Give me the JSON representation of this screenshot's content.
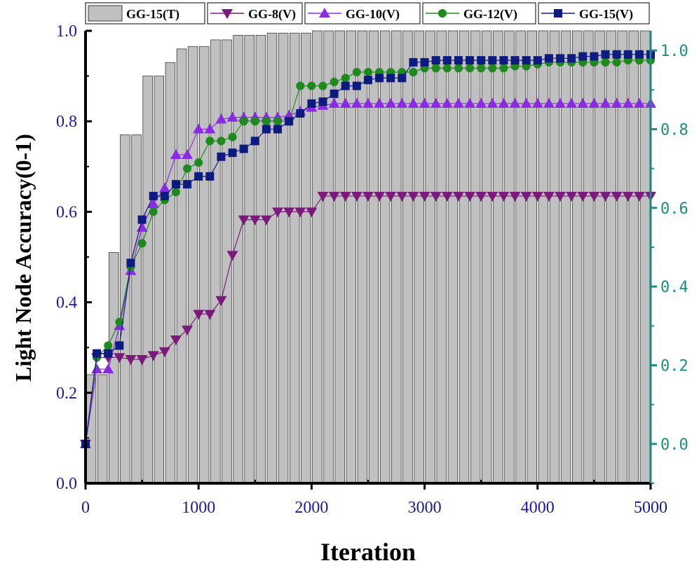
{
  "chart_data": {
    "type": "bar+line",
    "xlabel": "Iteration",
    "ylabel": "Light Node Accuracy(0-1)",
    "xlim": [
      0,
      5000
    ],
    "ylim_left": [
      0,
      1.0
    ],
    "ylim_right": [
      -0.1,
      1.05
    ],
    "xticks": [
      "0",
      "1000",
      "2000",
      "3000",
      "4000",
      "5000"
    ],
    "yticks_left": [
      "0.0",
      "0.2",
      "0.4",
      "0.6",
      "0.8",
      "1.0"
    ],
    "yticks_right": [
      "0.0",
      "0.2",
      "0.4",
      "0.6",
      "0.8",
      "1.0"
    ],
    "grid": false,
    "legend_position": "top",
    "bars": {
      "name": "GG-15(T)",
      "color": "#c0c0c0",
      "x": [
        100,
        200,
        300,
        400,
        500,
        600,
        700,
        800,
        900,
        1000,
        1100,
        1200,
        1300,
        1400,
        1500,
        1600,
        1700,
        1800,
        1900,
        2000,
        2100,
        2200,
        2300,
        2400,
        2500,
        2600,
        2700,
        2800,
        2900,
        3000,
        3100,
        3200,
        3300,
        3400,
        3500,
        3600,
        3700,
        3800,
        3900,
        4000,
        4100,
        4200,
        4300,
        4400,
        4500,
        4600,
        4700,
        4800,
        4900,
        5000
      ],
      "values": [
        0.24,
        0.24,
        0.51,
        0.77,
        0.77,
        0.9,
        0.9,
        0.93,
        0.96,
        0.965,
        0.965,
        0.98,
        0.98,
        0.99,
        0.99,
        0.99,
        0.995,
        0.995,
        0.995,
        0.995,
        1.0,
        1.0,
        1.0,
        1.0,
        1.0,
        1.0,
        1.0,
        1.0,
        1.0,
        1.0,
        1.0,
        1.0,
        1.0,
        1.0,
        1.0,
        1.0,
        1.0,
        1.0,
        1.0,
        1.0,
        1.0,
        1.0,
        1.0,
        1.0,
        1.0,
        1.0,
        1.0,
        1.0,
        1.0,
        1.0
      ]
    },
    "x": [
      0,
      100,
      200,
      300,
      400,
      500,
      600,
      700,
      800,
      900,
      1000,
      1100,
      1200,
      1300,
      1400,
      1500,
      1600,
      1700,
      1800,
      1900,
      2000,
      2100,
      2200,
      2300,
      2400,
      2500,
      2600,
      2700,
      2800,
      2900,
      3000,
      3100,
      3200,
      3300,
      3400,
      3500,
      3600,
      3700,
      3800,
      3900,
      4000,
      4100,
      4200,
      4300,
      4400,
      4500,
      4600,
      4700,
      4800,
      4900,
      5000
    ],
    "series": [
      {
        "name": "GG-8(V)",
        "color": "#7a1a7a",
        "marker": "triangle-down",
        "values": [
          0,
          0.22,
          0.22,
          0.22,
          0.215,
          0.215,
          0.225,
          0.235,
          0.265,
          0.29,
          0.33,
          0.33,
          0.365,
          0.48,
          0.57,
          0.57,
          0.57,
          0.59,
          0.59,
          0.59,
          0.59,
          0.63,
          0.63,
          0.63,
          0.63,
          0.63,
          0.63,
          0.63,
          0.63,
          0.63,
          0.63,
          0.63,
          0.63,
          0.63,
          0.63,
          0.63,
          0.63,
          0.63,
          0.63,
          0.63,
          0.63,
          0.63,
          0.63,
          0.63,
          0.63,
          0.63,
          0.63,
          0.63,
          0.63,
          0.63,
          0.63
        ]
      },
      {
        "name": "GG-10(V)",
        "color": "#8a2be2",
        "marker": "triangle-up",
        "values": [
          0,
          0.19,
          0.19,
          0.3,
          0.44,
          0.55,
          0.61,
          0.65,
          0.735,
          0.735,
          0.8,
          0.8,
          0.825,
          0.83,
          0.83,
          0.83,
          0.83,
          0.83,
          0.835,
          0.845,
          0.855,
          0.86,
          0.865,
          0.865,
          0.865,
          0.865,
          0.865,
          0.865,
          0.865,
          0.865,
          0.865,
          0.865,
          0.865,
          0.865,
          0.865,
          0.865,
          0.865,
          0.865,
          0.865,
          0.865,
          0.865,
          0.865,
          0.865,
          0.865,
          0.865,
          0.865,
          0.865,
          0.865,
          0.865,
          0.865,
          0.865
        ]
      },
      {
        "name": "GG-12(V)",
        "color": "#1e8a1e",
        "marker": "circle",
        "values": [
          0,
          0.22,
          0.25,
          0.31,
          0.45,
          0.51,
          0.59,
          0.62,
          0.64,
          0.7,
          0.715,
          0.77,
          0.77,
          0.78,
          0.82,
          0.82,
          0.82,
          0.82,
          0.82,
          0.91,
          0.91,
          0.91,
          0.92,
          0.93,
          0.945,
          0.945,
          0.945,
          0.945,
          0.945,
          0.945,
          0.955,
          0.955,
          0.955,
          0.955,
          0.955,
          0.955,
          0.955,
          0.955,
          0.96,
          0.96,
          0.965,
          0.97,
          0.97,
          0.97,
          0.97,
          0.97,
          0.97,
          0.97,
          0.975,
          0.975,
          0.975
        ]
      },
      {
        "name": "GG-15(V)",
        "color": "#0d1a80",
        "marker": "square",
        "values": [
          0,
          0.23,
          0.23,
          0.25,
          0.46,
          0.57,
          0.63,
          0.63,
          0.66,
          0.66,
          0.68,
          0.68,
          0.73,
          0.74,
          0.75,
          0.77,
          0.8,
          0.8,
          0.82,
          0.84,
          0.865,
          0.87,
          0.89,
          0.91,
          0.91,
          0.925,
          0.93,
          0.93,
          0.93,
          0.97,
          0.97,
          0.975,
          0.975,
          0.975,
          0.975,
          0.975,
          0.975,
          0.975,
          0.975,
          0.975,
          0.975,
          0.98,
          0.98,
          0.98,
          0.985,
          0.985,
          0.99,
          0.99,
          0.99,
          0.99,
          0.99
        ]
      }
    ]
  },
  "colors": {
    "left_axis": "#1a1aa0",
    "right_axis": "#1e8c82",
    "bar_fill": "#c0c0c0"
  }
}
